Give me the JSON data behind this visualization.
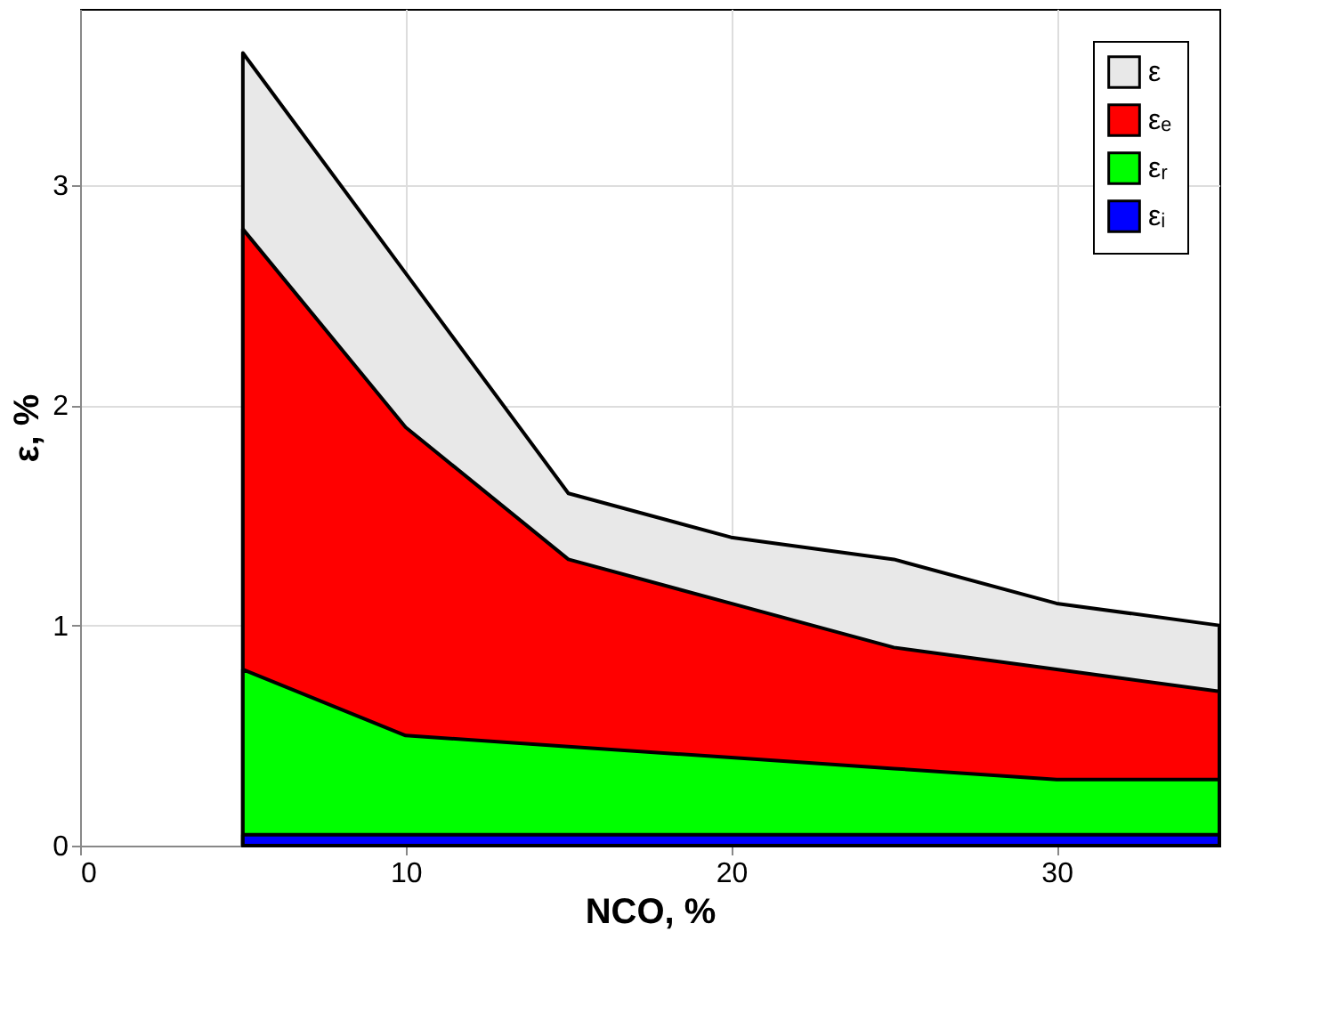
{
  "chart_data": {
    "type": "area",
    "xlabel": "NCO, %",
    "ylabel": "ε, %",
    "x": [
      5,
      10,
      15,
      20,
      25,
      30,
      35
    ],
    "series": [
      {
        "name": "ε",
        "color": "#e8e8e8",
        "values": [
          3.6,
          2.6,
          1.6,
          1.4,
          1.3,
          1.1,
          1.0
        ]
      },
      {
        "name": "εₑ",
        "color": "#ff0000",
        "values": [
          2.8,
          1.9,
          1.3,
          1.1,
          0.9,
          0.8,
          0.7
        ]
      },
      {
        "name": "εᵣ",
        "color": "#00ff00",
        "values": [
          0.8,
          0.5,
          0.45,
          0.4,
          0.35,
          0.3,
          0.3
        ]
      },
      {
        "name": "εᵢ",
        "color": "#0000ff",
        "values": [
          0.05,
          0.05,
          0.05,
          0.05,
          0.05,
          0.05,
          0.05
        ]
      }
    ],
    "xlim": [
      0,
      35
    ],
    "xticks": [
      0,
      10,
      20,
      30
    ],
    "ylim": [
      0,
      3.8
    ],
    "yticks": [
      0,
      1,
      2,
      3
    ],
    "grid": true,
    "legend": "top right"
  }
}
